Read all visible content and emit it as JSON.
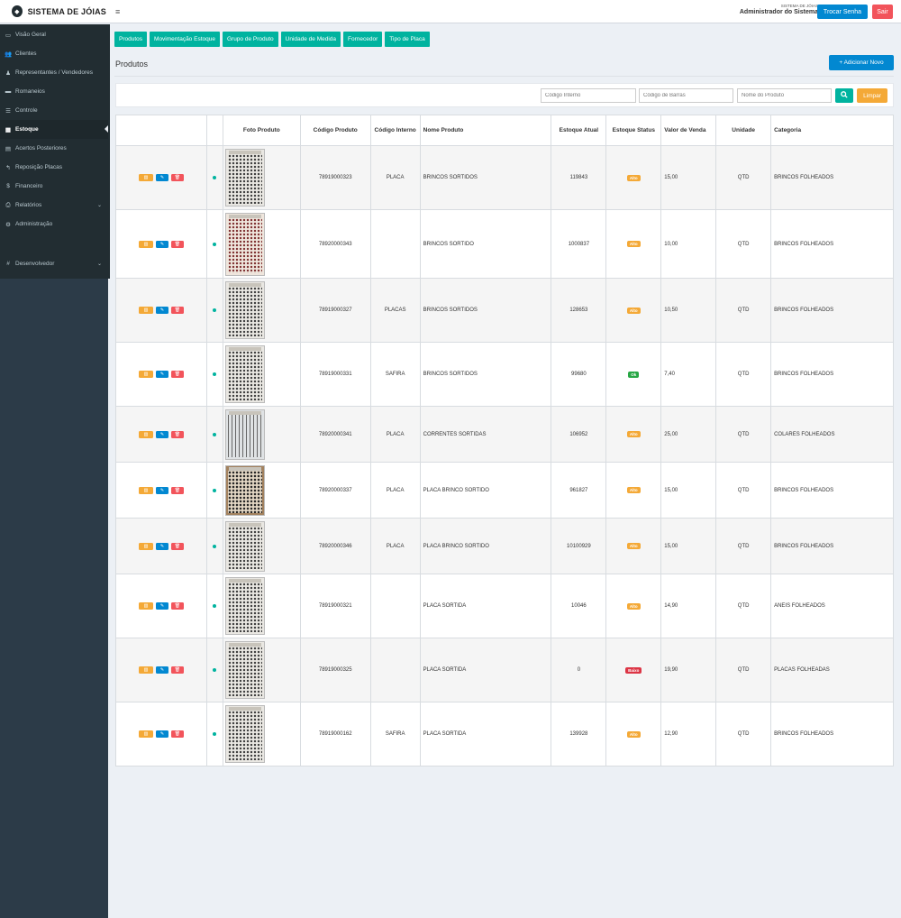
{
  "header": {
    "brand_title": "SISTEMA DE JÓIAS",
    "brand_icon": "gem-logo-icon",
    "menu_icon": "≡",
    "system_label": "SISTEMA DE JÓIAS",
    "user_name": "Administrador do Sistema",
    "change_password_label": "Trocar Senha",
    "logout_label": "Sair"
  },
  "sidebar": {
    "items": [
      {
        "label": "Visão Geral",
        "icon": "▭"
      },
      {
        "label": "Clientes",
        "icon": "👥"
      },
      {
        "label": "Representantes / Vendedores",
        "icon": "♟"
      },
      {
        "label": "Romaneios",
        "icon": "▬"
      },
      {
        "label": "Controle",
        "icon": "☰"
      },
      {
        "label": "Estoque",
        "icon": "▦"
      },
      {
        "label": "Acertos Posteriores",
        "icon": "▤"
      },
      {
        "label": "Reposição Placas",
        "icon": "↰"
      },
      {
        "label": "Financeiro",
        "icon": "$"
      },
      {
        "label": "Relatórios",
        "icon": "⎙"
      },
      {
        "label": "Administração",
        "icon": "⚙"
      },
      {
        "label": "Desenvolvedor",
        "icon": "#"
      }
    ],
    "chevron": "⌄"
  },
  "tabs": [
    "Produtos",
    "Movimentação Estoque",
    "Grupo de Produto",
    "Unidade de Medida",
    "Fornecedor",
    "Tipo de Placa"
  ],
  "page_title": "Produtos",
  "add_button": "+ Adicionar Novo",
  "filters": {
    "codigo_interno_placeholder": "Código Interno",
    "codigo_barras_placeholder": "Código de Barras",
    "nome_produto_placeholder": "Nome do Produto",
    "search_icon": "🔍",
    "clear_label": "Limpar"
  },
  "table": {
    "headers": {
      "foto": "Foto Produto",
      "codigo_produto": "Código Produto",
      "codigo_interno": "Código Interno",
      "nome": "Nome Produto",
      "estoque_atual": "Estoque Atual",
      "estoque_status": "Estoque Status",
      "valor_venda": "Valor de Venda",
      "unidade": "Unidade",
      "categoria": "Categoria"
    },
    "action_icons": {
      "barcode": "▥",
      "edit": "✎",
      "delete": "🗑"
    },
    "status_colors": {
      "Alto": "#f4a937",
      "Ok": "#28a745",
      "Baixo": "#dc3545"
    },
    "rows": [
      {
        "codigo": "78919000323",
        "interno": "PLACA",
        "nome": "BRINCOS SORTIDOS",
        "estoque": "119843",
        "status": "Alto",
        "valor": "15,00",
        "unidade": "QTD",
        "categoria": "BRINCOS FOLHEADOS",
        "photo": "board"
      },
      {
        "codigo": "78920000343",
        "interno": "",
        "nome": "BRINCOS SORTIDO",
        "estoque": "1000837",
        "status": "Alto",
        "valor": "10,00",
        "unidade": "QTD",
        "categoria": "BRINCOS FOLHEADOS",
        "photo": "warm"
      },
      {
        "codigo": "78919000327",
        "interno": "PLACAS",
        "nome": "BRINCOS SORTIDOS",
        "estoque": "128653",
        "status": "Alto",
        "valor": "10,50",
        "unidade": "QTD",
        "categoria": "BRINCOS FOLHEADOS",
        "photo": "board"
      },
      {
        "codigo": "78919000331",
        "interno": "SAFIRA",
        "nome": "BRINCOS SORTIDOS",
        "estoque": "99680",
        "status": "Ok",
        "valor": "7,40",
        "unidade": "QTD",
        "categoria": "BRINCOS FOLHEADOS",
        "photo": "board"
      },
      {
        "codigo": "78920000341",
        "interno": "PLACA",
        "nome": "CORRENTES SORTIDAS",
        "estoque": "106952",
        "status": "Alto",
        "valor": "25,00",
        "unidade": "QTD",
        "categoria": "COLARES FOLHEADOS",
        "photo": "necklace"
      },
      {
        "codigo": "78920000337",
        "interno": "PLACA",
        "nome": "PLACA BRINCO SORTIDO",
        "estoque": "961827",
        "status": "Alto",
        "valor": "15,00",
        "unidade": "QTD",
        "categoria": "BRINCOS FOLHEADOS",
        "photo": "brown"
      },
      {
        "codigo": "78920000346",
        "interno": "PLACA",
        "nome": "PLACA BRINCO SORTIDO",
        "estoque": "10100929",
        "status": "Alto",
        "valor": "15,00",
        "unidade": "QTD",
        "categoria": "BRINCOS FOLHEADOS",
        "photo": "board"
      },
      {
        "codigo": "78919000321",
        "interno": "",
        "nome": "PLACA SORTIDA",
        "estoque": "10046",
        "status": "Alto",
        "valor": "14,90",
        "unidade": "QTD",
        "categoria": "ANEIS FOLHEADOS",
        "photo": "board"
      },
      {
        "codigo": "78919000325",
        "interno": "",
        "nome": "PLACA SORTIDA",
        "estoque": "0",
        "status": "Baixo",
        "valor": "19,90",
        "unidade": "QTD",
        "categoria": "PLACAS FOLHEADAS",
        "photo": "board"
      },
      {
        "codigo": "78919000162",
        "interno": "SAFIRA",
        "nome": "PLACA SORTIDA",
        "estoque": "139928",
        "status": "Alto",
        "valor": "12,90",
        "unidade": "QTD",
        "categoria": "BRINCOS FOLHEADOS",
        "photo": "board"
      }
    ]
  }
}
